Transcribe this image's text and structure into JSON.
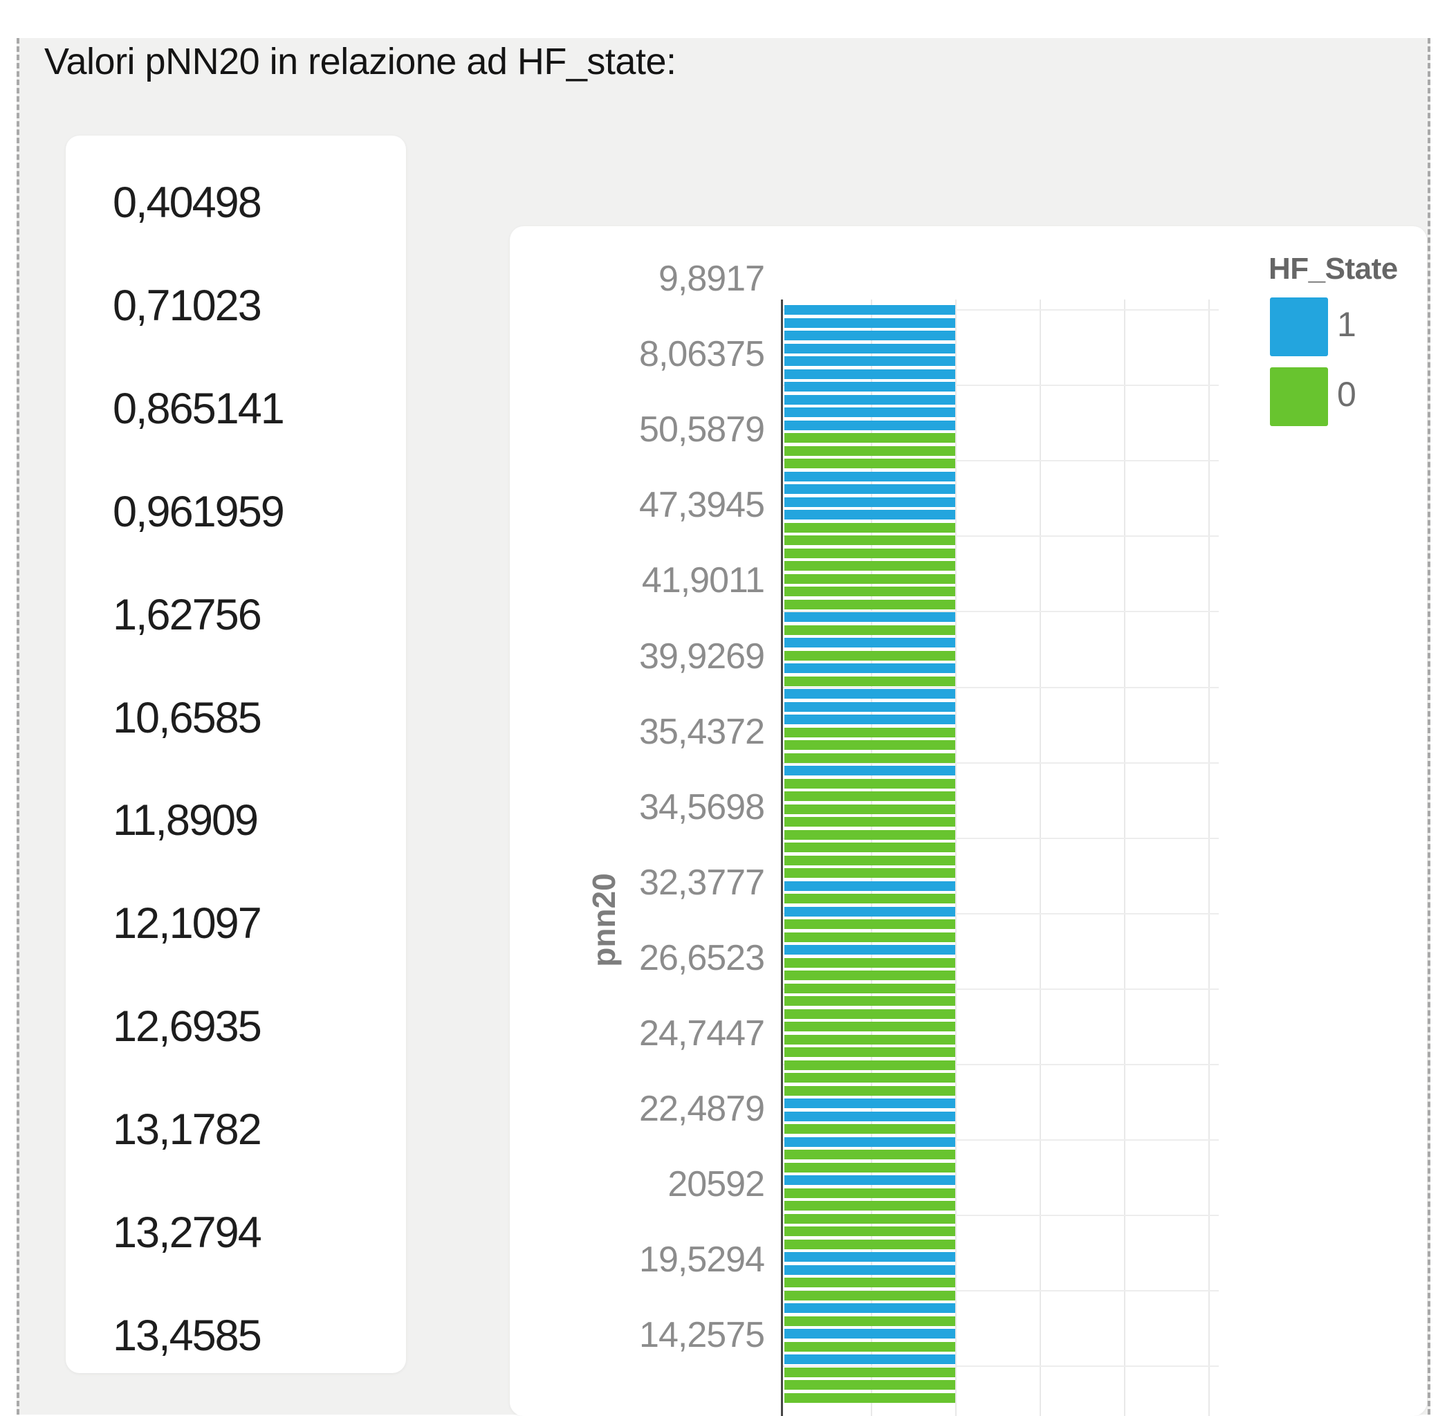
{
  "page": {
    "title": "Valori pNN20 in relazione ad HF_state:"
  },
  "values_list": [
    "0,40498",
    "0,71023",
    "0,865141",
    "0,961959",
    "1,62756",
    "10,6585",
    "11,8909",
    "12,1097",
    "12,6935",
    "13,1782",
    "13,2794",
    "13,4585"
  ],
  "chart": {
    "ylabel": "pnn20",
    "legend": {
      "title": "HF_State",
      "items": [
        {
          "label": "1",
          "color": "#23a5de"
        },
        {
          "label": "0",
          "color": "#68c42f"
        }
      ]
    }
  },
  "chart_data": {
    "type": "bar",
    "orientation": "horizontal",
    "title": "",
    "xlabel": "",
    "ylabel": "pnn20",
    "grid": true,
    "legend_position": "top-right",
    "legend_title": "HF_State",
    "legend_entries": [
      {
        "label": "1",
        "color": "#23a5de"
      },
      {
        "label": "0",
        "color": "#68c42f"
      }
    ],
    "visible_ytick_labels": [
      "9,8917",
      "8,06375",
      "50,5879",
      "47,3945",
      "41,9011",
      "39,9269",
      "35,4372",
      "34,5698",
      "32,3777",
      "26,6523",
      "24,7447",
      "22,4879",
      "20592",
      "19,5294",
      "14,2575"
    ],
    "bar_length_uniform": 1,
    "bars_hf_state_top_to_bottom": [
      1,
      1,
      1,
      1,
      1,
      1,
      1,
      1,
      1,
      1,
      0,
      0,
      0,
      1,
      1,
      1,
      1,
      0,
      0,
      0,
      0,
      0,
      0,
      0,
      1,
      0,
      1,
      0,
      1,
      0,
      1,
      1,
      1,
      0,
      0,
      0,
      1,
      0,
      0,
      0,
      0,
      0,
      0,
      0,
      0,
      1,
      0,
      1,
      0,
      0,
      1,
      0,
      0,
      0,
      0,
      0,
      0,
      0,
      0,
      0,
      0,
      0,
      1,
      1,
      0,
      1,
      0,
      0,
      1,
      0,
      0,
      0,
      0,
      0,
      1,
      1,
      0,
      0,
      1,
      0,
      1,
      0,
      1,
      0,
      0,
      0
    ]
  }
}
